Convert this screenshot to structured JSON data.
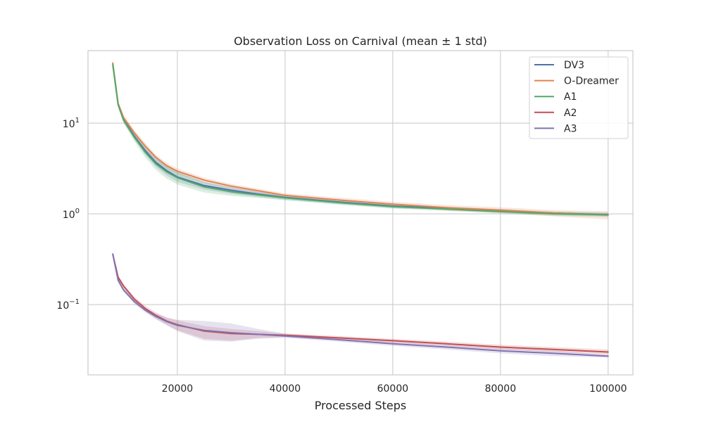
{
  "chart_data": {
    "type": "line",
    "title": "Observation Loss on Carnival (mean ± 1 std)",
    "xlabel": "Processed Steps",
    "ylabel": "",
    "y_scale": "log",
    "xlim": [
      3400,
      104600
    ],
    "ylim": [
      0.0168,
      63
    ],
    "grid": true,
    "legend_position": "top-right",
    "x_ticks": [
      20000,
      40000,
      60000,
      80000,
      100000
    ],
    "y_ticks": [
      {
        "value": 0.1,
        "label": "10",
        "exp": "−1"
      },
      {
        "value": 1,
        "label": "10",
        "exp": "0"
      },
      {
        "value": 10,
        "label": "10",
        "exp": "1"
      }
    ],
    "x": [
      8000,
      9000,
      10000,
      12000,
      14000,
      16000,
      18000,
      20000,
      25000,
      30000,
      35000,
      40000,
      50000,
      60000,
      70000,
      80000,
      90000,
      100000
    ],
    "series": [
      {
        "name": "DV3",
        "color": "#4c72b0",
        "values": [
          45,
          16,
          11,
          7.2,
          5.0,
          3.7,
          3.0,
          2.55,
          2.05,
          1.82,
          1.65,
          1.52,
          1.35,
          1.22,
          1.15,
          1.08,
          1.02,
          0.98
        ],
        "std_lower": [
          42,
          15,
          10.2,
          6.6,
          4.5,
          3.3,
          2.65,
          2.25,
          1.85,
          1.66,
          1.53,
          1.43,
          1.28,
          1.16,
          1.1,
          1.03,
          0.98,
          0.94
        ],
        "std_upper": [
          48,
          17,
          11.8,
          7.8,
          5.5,
          4.1,
          3.35,
          2.85,
          2.25,
          1.98,
          1.77,
          1.61,
          1.42,
          1.28,
          1.2,
          1.13,
          1.06,
          1.02
        ]
      },
      {
        "name": "O-Dreamer",
        "color": "#dd8452",
        "values": [
          46,
          16.5,
          11.5,
          7.8,
          5.6,
          4.2,
          3.4,
          2.95,
          2.35,
          2.02,
          1.8,
          1.6,
          1.42,
          1.28,
          1.17,
          1.1,
          1.02,
          0.97
        ],
        "std_lower": [
          43,
          15.5,
          10.7,
          7.2,
          5.1,
          3.9,
          3.15,
          2.75,
          2.2,
          1.9,
          1.7,
          1.52,
          1.33,
          1.2,
          1.09,
          1.02,
          0.94,
          0.87
        ],
        "std_upper": [
          49,
          17.5,
          12.3,
          8.4,
          6.1,
          4.5,
          3.65,
          3.15,
          2.5,
          2.14,
          1.9,
          1.68,
          1.51,
          1.36,
          1.25,
          1.18,
          1.1,
          1.07
        ]
      },
      {
        "name": "A1",
        "color": "#55a868",
        "values": [
          44,
          16,
          10.8,
          7.0,
          4.8,
          3.55,
          2.9,
          2.5,
          1.98,
          1.75,
          1.62,
          1.5,
          1.33,
          1.2,
          1.13,
          1.06,
          1.0,
          0.98
        ],
        "std_lower": [
          41,
          15,
          10.0,
          6.3,
          4.2,
          3.05,
          2.45,
          2.1,
          1.72,
          1.58,
          1.5,
          1.41,
          1.26,
          1.14,
          1.08,
          1.01,
          0.95,
          0.93
        ],
        "std_upper": [
          47,
          17,
          11.6,
          7.7,
          5.4,
          4.05,
          3.35,
          2.9,
          2.24,
          1.92,
          1.74,
          1.59,
          1.4,
          1.26,
          1.18,
          1.11,
          1.05,
          1.04
        ]
      },
      {
        "name": "A2",
        "color": "#c44e52",
        "values": [
          0.36,
          0.2,
          0.16,
          0.115,
          0.091,
          0.076,
          0.066,
          0.06,
          0.051,
          0.048,
          0.047,
          0.046,
          0.043,
          0.04,
          0.037,
          0.034,
          0.032,
          0.03
        ],
        "std_lower": [
          0.34,
          0.19,
          0.152,
          0.108,
          0.085,
          0.07,
          0.06,
          0.052,
          0.042,
          0.04,
          0.043,
          0.044,
          0.041,
          0.038,
          0.035,
          0.032,
          0.03,
          0.028
        ],
        "std_upper": [
          0.38,
          0.21,
          0.168,
          0.122,
          0.097,
          0.082,
          0.072,
          0.067,
          0.058,
          0.054,
          0.051,
          0.048,
          0.045,
          0.042,
          0.039,
          0.036,
          0.034,
          0.032
        ]
      },
      {
        "name": "A3",
        "color": "#8172b3",
        "values": [
          0.36,
          0.185,
          0.145,
          0.108,
          0.087,
          0.074,
          0.065,
          0.059,
          0.052,
          0.049,
          0.047,
          0.045,
          0.041,
          0.037,
          0.034,
          0.031,
          0.029,
          0.027
        ],
        "std_lower": [
          0.34,
          0.176,
          0.138,
          0.102,
          0.082,
          0.069,
          0.059,
          0.051,
          0.04,
          0.039,
          0.042,
          0.043,
          0.039,
          0.035,
          0.032,
          0.029,
          0.027,
          0.026
        ],
        "std_upper": [
          0.38,
          0.195,
          0.152,
          0.114,
          0.092,
          0.08,
          0.072,
          0.068,
          0.066,
          0.062,
          0.054,
          0.048,
          0.043,
          0.039,
          0.036,
          0.033,
          0.031,
          0.028
        ]
      }
    ]
  }
}
